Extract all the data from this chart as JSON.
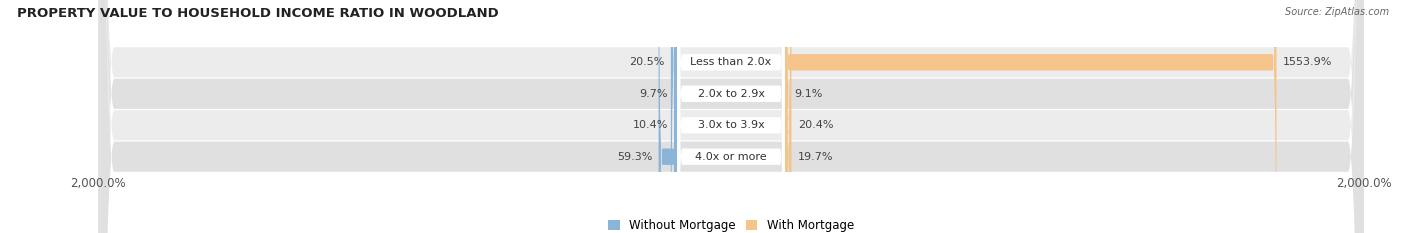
{
  "title": "PROPERTY VALUE TO HOUSEHOLD INCOME RATIO IN WOODLAND",
  "source": "Source: ZipAtlas.com",
  "categories": [
    "Less than 2.0x",
    "2.0x to 2.9x",
    "3.0x to 3.9x",
    "4.0x or more"
  ],
  "without_mortgage": [
    20.5,
    9.7,
    10.4,
    59.3
  ],
  "with_mortgage": [
    1553.9,
    9.1,
    20.4,
    19.7
  ],
  "xlim": 2000.0,
  "x_tick_labels": [
    "2,000.0%",
    "2,000.0%"
  ],
  "color_without": "#8ab4d8",
  "color_with": "#f5c48a",
  "row_colors": [
    "#ececec",
    "#e0e0e0",
    "#ececec",
    "#e0e0e0"
  ],
  "label_box_color": "#ffffff",
  "title_fontsize": 9.5,
  "label_fontsize": 8,
  "tick_fontsize": 8.5,
  "value_fontsize": 8
}
